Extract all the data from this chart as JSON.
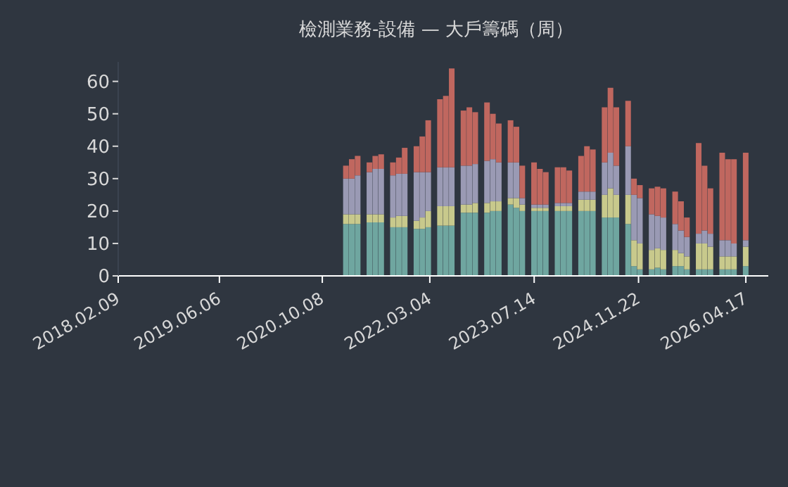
{
  "chart_data": {
    "type": "bar",
    "title": "檢測業務-設備 — 大戶籌碼（周）",
    "stacked": true,
    "x": [
      "2021-01-29",
      "2021-02-26",
      "2021-03-26",
      "2021-04-23",
      "2021-05-21",
      "2021-06-18",
      "2021-07-16",
      "2021-08-13",
      "2021-09-10",
      "2021-10-08",
      "2021-11-05",
      "2021-12-03",
      "2021-12-31",
      "2022-01-28",
      "2022-02-25",
      "2022-03-25",
      "2022-04-22",
      "2022-05-20",
      "2022-06-17",
      "2022-07-15",
      "2022-08-12",
      "2022-09-09",
      "2022-10-07",
      "2022-11-04",
      "2022-12-02",
      "2022-12-30",
      "2023-01-27",
      "2023-02-24",
      "2023-03-24",
      "2023-04-21",
      "2023-05-19",
      "2023-06-16",
      "2023-07-14",
      "2023-08-11",
      "2023-09-08",
      "2023-10-06",
      "2023-11-03",
      "2023-12-01",
      "2023-12-29",
      "2024-01-26",
      "2024-02-23",
      "2024-03-22",
      "2024-04-19",
      "2024-05-17",
      "2024-06-14",
      "2024-07-12",
      "2024-08-09",
      "2024-09-06",
      "2024-10-04",
      "2024-11-01",
      "2024-11-29",
      "2024-12-27",
      "2025-01-24",
      "2025-02-21",
      "2025-03-21",
      "2025-04-18",
      "2025-05-16",
      "2025-06-13",
      "2025-07-11",
      "2025-08-08",
      "2025-09-05",
      "2025-10-03",
      "2025-10-31",
      "2025-11-28",
      "2025-12-26",
      "2026-01-23",
      "2026-02-20",
      "2026-03-20",
      "2026-04-17"
    ],
    "series": [
      {
        "color": "#6fa6a0",
        "values": [
          16,
          16,
          16,
          null,
          16.5,
          16.5,
          16.5,
          null,
          15,
          15,
          15,
          null,
          14.5,
          14.5,
          15,
          null,
          15.5,
          15.5,
          15.5,
          null,
          19.5,
          19.5,
          19.5,
          null,
          19.5,
          20,
          20,
          null,
          22,
          21,
          20,
          null,
          20,
          20,
          20,
          null,
          20,
          20,
          20,
          null,
          20,
          20,
          20,
          null,
          18,
          18,
          18,
          null,
          16,
          3,
          2,
          null,
          2,
          2.5,
          2,
          null,
          3,
          3,
          2,
          null,
          2,
          2,
          2,
          null,
          2,
          2,
          2,
          null,
          3
        ]
      },
      {
        "color": "#c8c98c",
        "values": [
          3,
          3,
          3,
          null,
          2.5,
          2.5,
          2.5,
          null,
          3,
          3.5,
          3.5,
          null,
          2.5,
          3.5,
          5,
          null,
          6,
          6,
          6,
          null,
          2.5,
          2.5,
          3,
          null,
          3,
          3,
          3,
          null,
          2,
          3,
          2,
          null,
          1,
          1,
          1,
          null,
          1.5,
          1.5,
          1.5,
          null,
          3.5,
          3.5,
          3.5,
          null,
          7,
          9,
          7,
          null,
          9,
          8,
          8,
          null,
          6,
          6,
          6,
          null,
          5,
          4,
          4,
          null,
          8,
          8,
          7,
          null,
          4,
          4,
          4,
          null,
          6
        ]
      },
      {
        "color": "#9a9ab4",
        "values": [
          11,
          11,
          12,
          null,
          13,
          14,
          14,
          null,
          13,
          13,
          13,
          null,
          15,
          14,
          12,
          null,
          12,
          12,
          12,
          null,
          12,
          12,
          12,
          null,
          13,
          13,
          12,
          null,
          11,
          11,
          2,
          null,
          1,
          1,
          1,
          null,
          1,
          1,
          1,
          null,
          2.5,
          2.5,
          2.5,
          null,
          10,
          11,
          9,
          null,
          15,
          14,
          14,
          null,
          11,
          10,
          10,
          null,
          8,
          7,
          6,
          null,
          3,
          4,
          4,
          null,
          5,
          5,
          4,
          null,
          2
        ]
      },
      {
        "color": "#c0675f",
        "values": [
          4,
          6,
          6,
          null,
          3,
          4,
          4.5,
          null,
          4,
          5,
          8,
          null,
          8,
          11,
          16,
          null,
          21,
          22,
          30.5,
          null,
          17,
          18,
          16,
          null,
          18,
          14,
          12,
          null,
          13,
          11,
          10,
          null,
          13,
          11,
          10,
          null,
          11,
          11,
          10,
          null,
          11,
          14,
          13,
          null,
          17,
          20,
          18,
          null,
          14,
          5,
          4,
          null,
          8,
          9,
          9,
          null,
          10,
          9,
          6,
          null,
          28,
          20,
          14,
          null,
          27,
          25,
          26,
          null,
          27
        ]
      }
    ],
    "xlim": [
      "2018-02-09",
      "2026-08-02"
    ],
    "xticks": [
      {
        "value": "2018-02-09",
        "label": "2018.02.09"
      },
      {
        "value": "2019-06-06",
        "label": "2019.06.06"
      },
      {
        "value": "2020-10-08",
        "label": "2020.10.08"
      },
      {
        "value": "2022-03-04",
        "label": "2022.03.04"
      },
      {
        "value": "2023-07-14",
        "label": "2023.07.14"
      },
      {
        "value": "2024-11-22",
        "label": "2024.11.22"
      },
      {
        "value": "2026-04-17",
        "label": "2026.04.17"
      }
    ],
    "ylim": [
      0,
      66
    ],
    "yticks": [
      0,
      10,
      20,
      30,
      40,
      50,
      60
    ],
    "grid": false,
    "legend": false
  }
}
